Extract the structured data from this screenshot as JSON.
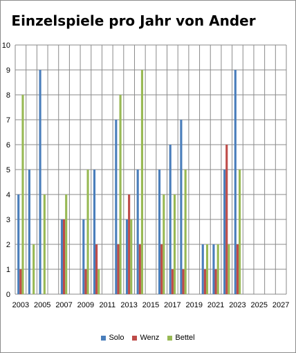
{
  "chart_data": {
    "type": "bar",
    "title": "Einzelspiele pro Jahr von Ander",
    "xlabel": "",
    "ylabel": "",
    "ylim": [
      0,
      10
    ],
    "yticks": [
      "0",
      "1",
      "2",
      "3",
      "4",
      "5",
      "6",
      "7",
      "8",
      "9",
      "10"
    ],
    "xlim": [
      2002.5,
      2027.5
    ],
    "xticks": [
      "2003",
      "2005",
      "2007",
      "2009",
      "2011",
      "2013",
      "2015",
      "2017",
      "2019",
      "2021",
      "2023",
      "2025",
      "2027"
    ],
    "grid": true,
    "legend_position": "bottom",
    "x": [
      2003,
      2004,
      2005,
      2007,
      2009,
      2010,
      2012,
      2013,
      2014,
      2016,
      2017,
      2018,
      2020,
      2021,
      2022,
      2023
    ],
    "series": [
      {
        "name": "Solo",
        "color": "#4a7ebb",
        "values": [
          4,
          5,
          9,
          3,
          3,
          5,
          7,
          3,
          5,
          5,
          6,
          7,
          2,
          2,
          5,
          9
        ]
      },
      {
        "name": "Wenz",
        "color": "#be4b48",
        "values": [
          1,
          0,
          0,
          3,
          1,
          2,
          2,
          4,
          2,
          2,
          1,
          1,
          1,
          1,
          6,
          2
        ]
      },
      {
        "name": "Bettel",
        "color": "#98b954",
        "values": [
          8,
          2,
          4,
          4,
          5,
          1,
          8,
          3,
          9,
          4,
          4,
          5,
          2,
          2,
          2,
          5
        ]
      }
    ]
  }
}
